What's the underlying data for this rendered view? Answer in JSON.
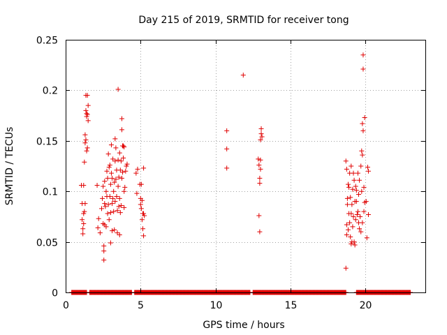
{
  "chart_data": {
    "type": "scatter",
    "title": "Day 215 of 2019, SRMTID for receiver tong",
    "xlabel": "GPS time / hours",
    "ylabel": "SRMTID / TECUs",
    "xlim": [
      0,
      24
    ],
    "ylim": [
      0,
      0.25
    ],
    "xticks": [
      "0",
      "5",
      "10",
      "15",
      "20"
    ],
    "yticks": [
      "0",
      "0.05",
      "0.1",
      "0.15",
      "0.2",
      "0.25"
    ],
    "grid": true,
    "marker": "+",
    "color": "#e00000",
    "zero_ranges": [
      [
        0.4,
        1.4
      ],
      [
        1.6,
        4.4
      ],
      [
        4.6,
        12.3
      ],
      [
        12.5,
        18.7
      ],
      [
        19.4,
        23.0
      ]
    ],
    "series": [
      {
        "name": "SRMTID",
        "points": [
          [
            1.05,
            0.106
          ],
          [
            1.1,
            0.088
          ],
          [
            1.1,
            0.072
          ],
          [
            1.15,
            0.063
          ],
          [
            1.15,
            0.058
          ],
          [
            1.2,
            0.078
          ],
          [
            1.2,
            0.068
          ],
          [
            1.2,
            0.106
          ],
          [
            1.25,
            0.129
          ],
          [
            1.3,
            0.148
          ],
          [
            1.3,
            0.156
          ],
          [
            1.35,
            0.151
          ],
          [
            1.35,
            0.195
          ],
          [
            1.35,
            0.18
          ],
          [
            1.4,
            0.177
          ],
          [
            1.4,
            0.174
          ],
          [
            1.45,
            0.195
          ],
          [
            1.45,
            0.176
          ],
          [
            1.5,
            0.185
          ],
          [
            1.5,
            0.17
          ],
          [
            1.4,
            0.14
          ],
          [
            1.45,
            0.143
          ],
          [
            1.3,
            0.088
          ],
          [
            1.25,
            0.08
          ],
          [
            2.1,
            0.106
          ],
          [
            2.15,
            0.064
          ],
          [
            2.2,
            0.073
          ],
          [
            2.3,
            0.059
          ],
          [
            2.4,
            0.083
          ],
          [
            2.45,
            0.093
          ],
          [
            2.5,
            0.105
          ],
          [
            2.5,
            0.068
          ],
          [
            2.55,
            0.046
          ],
          [
            2.55,
            0.041
          ],
          [
            2.55,
            0.032
          ],
          [
            2.6,
            0.11
          ],
          [
            2.6,
            0.088
          ],
          [
            2.6,
            0.067
          ],
          [
            2.65,
            0.085
          ],
          [
            2.7,
            0.1
          ],
          [
            2.7,
            0.065
          ],
          [
            2.75,
            0.12
          ],
          [
            2.75,
            0.095
          ],
          [
            2.8,
            0.113
          ],
          [
            2.8,
            0.078
          ],
          [
            2.85,
            0.137
          ],
          [
            2.85,
            0.087
          ],
          [
            2.9,
            0.124
          ],
          [
            2.9,
            0.072
          ],
          [
            2.95,
            0.126
          ],
          [
            2.95,
            0.095
          ],
          [
            3.0,
            0.107
          ],
          [
            3.0,
            0.079
          ],
          [
            3.0,
            0.049
          ],
          [
            3.05,
            0.146
          ],
          [
            3.05,
            0.118
          ],
          [
            3.1,
            0.113
          ],
          [
            3.1,
            0.088
          ],
          [
            3.1,
            0.061
          ],
          [
            3.15,
            0.132
          ],
          [
            3.15,
            0.093
          ],
          [
            3.2,
            0.1
          ],
          [
            3.2,
            0.08
          ],
          [
            3.25,
            0.109
          ],
          [
            3.25,
            0.062
          ],
          [
            3.3,
            0.152
          ],
          [
            3.3,
            0.13
          ],
          [
            3.3,
            0.09
          ],
          [
            3.35,
            0.143
          ],
          [
            3.35,
            0.112
          ],
          [
            3.4,
            0.121
          ],
          [
            3.4,
            0.095
          ],
          [
            3.45,
            0.081
          ],
          [
            3.45,
            0.059
          ],
          [
            3.5,
            0.201
          ],
          [
            3.5,
            0.131
          ],
          [
            3.5,
            0.105
          ],
          [
            3.55,
            0.114
          ],
          [
            3.55,
            0.085
          ],
          [
            3.6,
            0.138
          ],
          [
            3.6,
            0.093
          ],
          [
            3.6,
            0.057
          ],
          [
            3.65,
            0.121
          ],
          [
            3.65,
            0.079
          ],
          [
            3.7,
            0.13
          ],
          [
            3.7,
            0.086
          ],
          [
            3.75,
            0.172
          ],
          [
            3.75,
            0.161
          ],
          [
            3.75,
            0.113
          ],
          [
            3.8,
            0.145
          ],
          [
            3.8,
            0.119
          ],
          [
            3.85,
            0.145
          ],
          [
            3.85,
            0.133
          ],
          [
            3.9,
            0.1
          ],
          [
            3.9,
            0.144
          ],
          [
            4.0,
            0.12
          ],
          [
            4.05,
            0.125
          ],
          [
            4.1,
            0.127
          ],
          [
            3.95,
            0.104
          ],
          [
            3.9,
            0.084
          ],
          [
            4.7,
            0.118
          ],
          [
            4.75,
            0.098
          ],
          [
            4.8,
            0.122
          ],
          [
            4.95,
            0.107
          ],
          [
            5.0,
            0.093
          ],
          [
            5.0,
            0.087
          ],
          [
            5.05,
            0.107
          ],
          [
            5.05,
            0.083
          ],
          [
            5.1,
            0.091
          ],
          [
            5.1,
            0.072
          ],
          [
            5.15,
            0.078
          ],
          [
            5.15,
            0.063
          ],
          [
            5.2,
            0.123
          ],
          [
            5.2,
            0.078
          ],
          [
            5.2,
            0.056
          ],
          [
            5.25,
            0.076
          ],
          [
            10.75,
            0.16
          ],
          [
            10.75,
            0.142
          ],
          [
            10.75,
            0.123
          ],
          [
            11.85,
            0.215
          ],
          [
            12.85,
            0.132
          ],
          [
            12.9,
            0.126
          ],
          [
            12.95,
            0.113
          ],
          [
            12.95,
            0.108
          ],
          [
            12.9,
            0.076
          ],
          [
            12.95,
            0.06
          ],
          [
            13.0,
            0.131
          ],
          [
            13.0,
            0.122
          ],
          [
            13.0,
            0.151
          ],
          [
            13.05,
            0.162
          ],
          [
            13.05,
            0.157
          ],
          [
            13.1,
            0.154
          ],
          [
            18.7,
            0.13
          ],
          [
            18.7,
            0.024
          ],
          [
            18.75,
            0.122
          ],
          [
            18.75,
            0.067
          ],
          [
            18.75,
            0.057
          ],
          [
            18.8,
            0.093
          ],
          [
            18.8,
            0.087
          ],
          [
            18.85,
            0.107
          ],
          [
            18.85,
            0.062
          ],
          [
            18.9,
            0.104
          ],
          [
            18.9,
            0.078
          ],
          [
            18.95,
            0.118
          ],
          [
            18.95,
            0.069
          ],
          [
            19.0,
            0.094
          ],
          [
            19.0,
            0.055
          ],
          [
            19.05,
            0.125
          ],
          [
            19.05,
            0.078
          ],
          [
            19.05,
            0.048
          ],
          [
            19.1,
            0.087
          ],
          [
            19.1,
            0.05
          ],
          [
            19.15,
            0.102
          ],
          [
            19.15,
            0.065
          ],
          [
            19.2,
            0.118
          ],
          [
            19.2,
            0.075
          ],
          [
            19.25,
            0.111
          ],
          [
            19.25,
            0.05
          ],
          [
            19.3,
            0.09
          ],
          [
            19.3,
            0.047
          ],
          [
            19.35,
            0.105
          ],
          [
            19.35,
            0.072
          ],
          [
            19.4,
            0.101
          ],
          [
            19.4,
            0.09
          ],
          [
            19.45,
            0.077
          ],
          [
            19.5,
            0.118
          ],
          [
            19.5,
            0.08
          ],
          [
            19.55,
            0.097
          ],
          [
            19.55,
            0.069
          ],
          [
            19.6,
            0.111
          ],
          [
            19.6,
            0.063
          ],
          [
            19.65,
            0.075
          ],
          [
            19.7,
            0.125
          ],
          [
            19.7,
            0.06
          ],
          [
            19.75,
            0.14
          ],
          [
            19.75,
            0.1
          ],
          [
            19.8,
            0.167
          ],
          [
            19.8,
            0.136
          ],
          [
            19.8,
            0.069
          ],
          [
            19.85,
            0.235
          ],
          [
            19.85,
            0.221
          ],
          [
            19.85,
            0.16
          ],
          [
            19.9,
            0.104
          ],
          [
            19.9,
            0.08
          ],
          [
            19.95,
            0.173
          ],
          [
            19.95,
            0.089
          ],
          [
            20.05,
            0.09
          ],
          [
            20.1,
            0.054
          ],
          [
            20.15,
            0.124
          ],
          [
            20.2,
            0.12
          ],
          [
            20.2,
            0.077
          ]
        ]
      }
    ]
  }
}
